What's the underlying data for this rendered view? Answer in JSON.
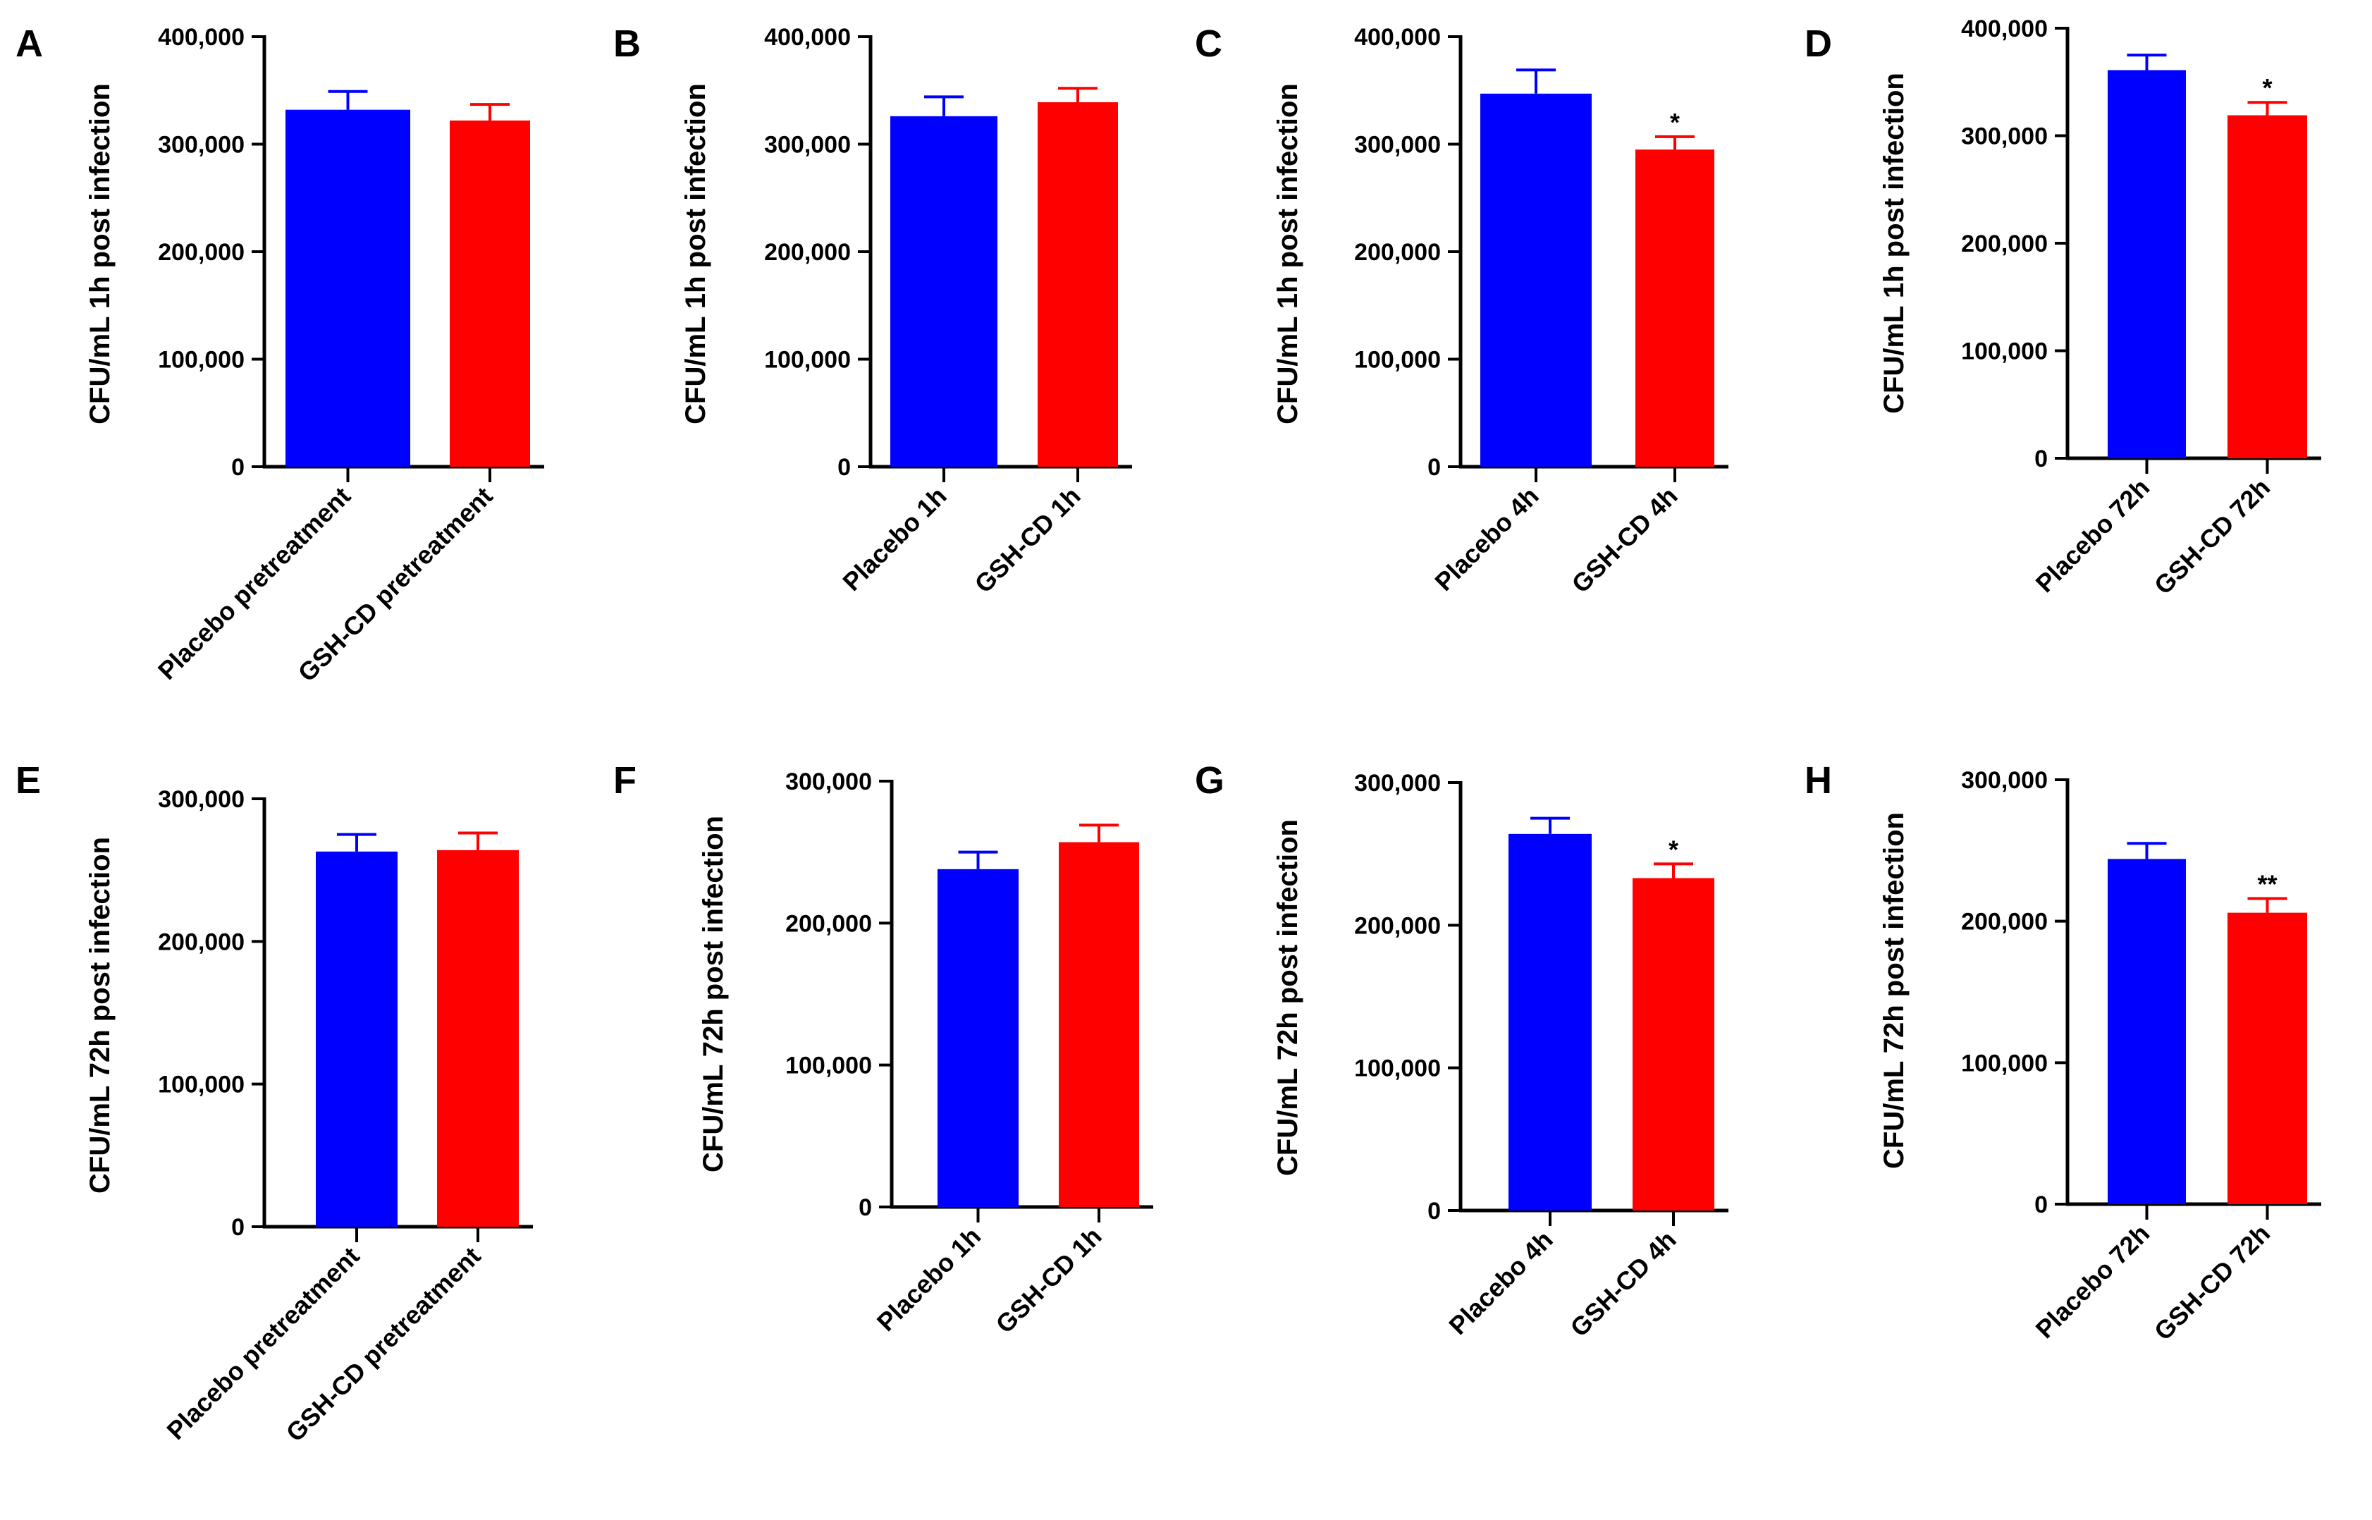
{
  "chart_data": [
    {
      "panel": "A",
      "type": "bar",
      "ylabel": "CFU/mL 1h post infection",
      "categories": [
        "Placebo pretreatment",
        "GSH-CD pretreatment"
      ],
      "values": [
        332000,
        322000
      ],
      "errors": [
        17000,
        15000
      ],
      "colors": [
        "#0000ff",
        "#ff0000"
      ],
      "significance": [
        "",
        ""
      ],
      "ylim": [
        0,
        400000
      ],
      "yticks": [
        "0",
        "100,000",
        "200,000",
        "300,000",
        "400,000"
      ]
    },
    {
      "panel": "B",
      "type": "bar",
      "ylabel": "CFU/mL 1h post infection",
      "categories": [
        "Placebo 1h",
        "GSH-CD 1h"
      ],
      "values": [
        326000,
        339000
      ],
      "errors": [
        18000,
        13000
      ],
      "colors": [
        "#0000ff",
        "#ff0000"
      ],
      "significance": [
        "",
        ""
      ],
      "ylim": [
        0,
        400000
      ],
      "yticks": [
        "0",
        "100,000",
        "200,000",
        "300,000",
        "400,000"
      ]
    },
    {
      "panel": "C",
      "type": "bar",
      "ylabel": "CFU/mL 1h post infection",
      "categories": [
        "Placebo 4h",
        "GSH-CD 4h"
      ],
      "values": [
        347000,
        295000
      ],
      "errors": [
        22000,
        12000
      ],
      "colors": [
        "#0000ff",
        "#ff0000"
      ],
      "significance": [
        "",
        "*"
      ],
      "ylim": [
        0,
        400000
      ],
      "yticks": [
        "0",
        "100,000",
        "200,000",
        "300,000",
        "400,000"
      ]
    },
    {
      "panel": "D",
      "type": "bar",
      "ylabel": "CFU/mL 1h post infection",
      "categories": [
        "Placebo 72h",
        "GSH-CD 72h"
      ],
      "values": [
        361000,
        319000
      ],
      "errors": [
        14000,
        12000
      ],
      "colors": [
        "#0000ff",
        "#ff0000"
      ],
      "significance": [
        "",
        "*"
      ],
      "ylim": [
        0,
        400000
      ],
      "yticks": [
        "0",
        "100,000",
        "200,000",
        "300,000",
        "400,000"
      ]
    },
    {
      "panel": "E",
      "type": "bar",
      "ylabel": "CFU/mL 72h post infection",
      "categories": [
        "Placebo pretreatment",
        "GSH-CD pretreatment"
      ],
      "values": [
        263000,
        264000
      ],
      "errors": [
        12000,
        12000
      ],
      "colors": [
        "#0000ff",
        "#ff0000"
      ],
      "significance": [
        "",
        ""
      ],
      "ylim": [
        0,
        300000
      ],
      "yticks": [
        "0",
        "100,000",
        "200,000",
        "300,000"
      ]
    },
    {
      "panel": "F",
      "type": "bar",
      "ylabel": "CFU/mL 72h post infection",
      "categories": [
        "Placebo 1h",
        "GSH-CD 1h"
      ],
      "values": [
        238000,
        257000
      ],
      "errors": [
        12000,
        12000
      ],
      "colors": [
        "#0000ff",
        "#ff0000"
      ],
      "significance": [
        "",
        ""
      ],
      "ylim": [
        0,
        300000
      ],
      "yticks": [
        "0",
        "100,000",
        "200,000",
        "300,000"
      ]
    },
    {
      "panel": "G",
      "type": "bar",
      "ylabel": "CFU/mL 72h post infection",
      "categories": [
        "Placebo 4h",
        "GSH-CD 4h"
      ],
      "values": [
        264000,
        233000
      ],
      "errors": [
        11000,
        10000
      ],
      "colors": [
        "#0000ff",
        "#ff0000"
      ],
      "significance": [
        "",
        "*"
      ],
      "ylim": [
        0,
        300000
      ],
      "yticks": [
        "0",
        "100,000",
        "200,000",
        "300,000"
      ]
    },
    {
      "panel": "H",
      "type": "bar",
      "ylabel": "CFU/mL 72h post infection",
      "categories": [
        "Placebo 72h",
        "GSH-CD 72h"
      ],
      "values": [
        244000,
        206000
      ],
      "errors": [
        11000,
        10000
      ],
      "colors": [
        "#0000ff",
        "#ff0000"
      ],
      "significance": [
        "",
        "**"
      ],
      "ylim": [
        0,
        300000
      ],
      "yticks": [
        "0",
        "100,000",
        "200,000",
        "300,000"
      ]
    }
  ]
}
